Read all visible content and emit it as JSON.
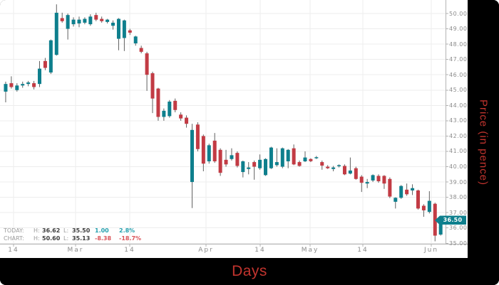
{
  "price_badge": {
    "value": "36.50",
    "price": 36.5
  },
  "legend": {
    "rows": [
      {
        "label": "TODAY:",
        "h_label": "H:",
        "high": "36.62",
        "l_label": "L:",
        "low": "35.50",
        "change": "1.00",
        "pct": "2.8%",
        "direction": "up"
      },
      {
        "label": "CHART:",
        "h_label": "H:",
        "high": "50.60",
        "l_label": "L:",
        "low": "35.13",
        "change": "-8.38",
        "pct": "-18.7%",
        "direction": "down"
      }
    ]
  },
  "colors": {
    "up": "#0e7f8d",
    "down": "#c23b44",
    "wick": "#606060",
    "grid": "#ededed",
    "axis": "#b3b3b3",
    "tick_text": "#8b8b8b",
    "axis_title": "#c2342e",
    "badge_bg": "#0e7f8d",
    "frame_bg": "#000000"
  },
  "chart_data": {
    "type": "candlestick",
    "xlabel": "Days",
    "ylabel": "Price (in pence)",
    "grid": true,
    "legend_position": "bottom-left",
    "ylim": [
      35,
      50.6
    ],
    "y_ticks": [
      {
        "label": "50.00",
        "price": 50
      },
      {
        "label": "49.00",
        "price": 49
      },
      {
        "label": "48.00",
        "price": 48
      },
      {
        "label": "47.00",
        "price": 47
      },
      {
        "label": "46.00",
        "price": 46
      },
      {
        "label": "45.00",
        "price": 45
      },
      {
        "label": "44.00",
        "price": 44
      },
      {
        "label": "43.00",
        "price": 43
      },
      {
        "label": "42.00",
        "price": 42
      },
      {
        "label": "41.00",
        "price": 41
      },
      {
        "label": "40.00",
        "price": 40
      },
      {
        "label": "39.00",
        "price": 39
      },
      {
        "label": "38.00",
        "price": 38
      },
      {
        "label": "37.00",
        "price": 37
      },
      {
        "label": "36.00",
        "price": 36
      },
      {
        "label": "35.00",
        "price": 35
      }
    ],
    "x_ticks": [
      {
        "label": "14",
        "x": 19
      },
      {
        "label": "Mar",
        "x": 106
      },
      {
        "label": "14",
        "x": 182
      },
      {
        "label": "Apr",
        "x": 289
      },
      {
        "label": "14",
        "x": 365
      },
      {
        "label": "May",
        "x": 435
      },
      {
        "label": "14",
        "x": 509
      },
      {
        "label": "Jun",
        "x": 605
      }
    ],
    "candles_format": [
      "open",
      "high",
      "low",
      "close"
    ],
    "candles": [
      [
        44.9,
        45.55,
        44.2,
        45.4
      ],
      [
        45.45,
        45.9,
        45.1,
        45.2
      ],
      [
        45.0,
        45.45,
        44.9,
        45.3
      ],
      [
        45.3,
        45.55,
        45.15,
        45.4
      ],
      [
        45.4,
        45.6,
        45.25,
        45.5
      ],
      [
        45.45,
        45.6,
        45.05,
        45.2
      ],
      [
        45.4,
        46.9,
        45.2,
        46.4
      ],
      [
        46.9,
        47.1,
        46.3,
        46.45
      ],
      [
        46.15,
        48.3,
        46.05,
        48.25
      ],
      [
        47.3,
        50.6,
        47.25,
        50.05
      ],
      [
        49.7,
        50.05,
        49.4,
        49.5
      ],
      [
        49.0,
        50.0,
        48.3,
        49.9
      ],
      [
        49.3,
        49.75,
        49.15,
        49.6
      ],
      [
        49.35,
        49.8,
        49.1,
        49.6
      ],
      [
        49.4,
        49.75,
        49.3,
        49.65
      ],
      [
        49.3,
        49.95,
        49.2,
        49.8
      ],
      [
        49.9,
        50.05,
        49.5,
        49.6
      ],
      [
        49.65,
        49.8,
        49.4,
        49.5
      ],
      [
        49.45,
        49.65,
        49.35,
        49.6
      ],
      [
        49.2,
        49.55,
        48.95,
        49.4
      ],
      [
        48.35,
        49.7,
        47.6,
        49.65
      ],
      [
        48.4,
        49.6,
        47.55,
        49.55
      ],
      [
        48.9,
        49.0,
        48.6,
        48.75
      ],
      [
        48.05,
        48.55,
        47.9,
        48.5
      ],
      [
        47.75,
        47.9,
        47.4,
        47.5
      ],
      [
        47.4,
        47.5,
        44.95,
        46.0
      ],
      [
        46.1,
        46.2,
        43.5,
        44.45
      ],
      [
        45.1,
        45.15,
        43.0,
        43.25
      ],
      [
        43.25,
        43.8,
        43.0,
        43.65
      ],
      [
        43.3,
        44.35,
        43.2,
        44.25
      ],
      [
        44.3,
        44.45,
        43.55,
        43.7
      ],
      [
        43.4,
        43.55,
        43.0,
        43.15
      ],
      [
        43.2,
        43.35,
        42.55,
        42.8
      ],
      [
        39.0,
        42.8,
        37.3,
        42.4
      ],
      [
        42.75,
        42.9,
        41.0,
        41.15
      ],
      [
        42.0,
        42.1,
        39.7,
        40.2
      ],
      [
        40.35,
        41.5,
        40.2,
        41.4
      ],
      [
        41.7,
        42.2,
        40.25,
        40.35
      ],
      [
        41.1,
        41.2,
        39.4,
        39.6
      ],
      [
        40.45,
        41.1,
        40.0,
        40.15
      ],
      [
        40.5,
        41.2,
        40.4,
        40.75
      ],
      [
        40.9,
        41.0,
        39.95,
        40.05
      ],
      [
        39.65,
        40.4,
        39.3,
        40.35
      ],
      [
        39.85,
        40.3,
        39.5,
        39.95
      ],
      [
        40.3,
        40.4,
        39.15,
        40.0
      ],
      [
        39.9,
        40.8,
        39.8,
        40.45
      ],
      [
        39.45,
        40.55,
        39.4,
        40.5
      ],
      [
        39.9,
        41.3,
        39.85,
        41.25
      ],
      [
        40.1,
        41.2,
        40.0,
        40.3
      ],
      [
        40.0,
        41.25,
        39.9,
        41.2
      ],
      [
        40.35,
        41.15,
        39.9,
        41.1
      ],
      [
        41.2,
        41.45,
        40.1,
        40.15
      ],
      [
        40.3,
        40.4,
        40.0,
        40.05
      ],
      [
        40.35,
        41.0,
        40.3,
        40.6
      ],
      [
        40.5,
        40.55,
        40.3,
        40.36
      ],
      [
        40.55,
        40.7,
        40.5,
        40.62
      ],
      [
        40.3,
        40.4,
        39.8,
        40.07
      ],
      [
        40.0,
        40.1,
        39.85,
        39.9
      ],
      [
        39.85,
        40.05,
        39.7,
        39.95
      ],
      [
        40.05,
        40.15,
        39.95,
        40.1
      ],
      [
        40.05,
        40.15,
        39.45,
        39.5
      ],
      [
        39.55,
        40.6,
        39.5,
        39.75
      ],
      [
        39.9,
        40.0,
        39.15,
        39.2
      ],
      [
        39.35,
        39.45,
        38.35,
        38.95
      ],
      [
        38.9,
        39.2,
        38.6,
        39.0
      ],
      [
        39.1,
        39.5,
        39.0,
        39.45
      ],
      [
        39.4,
        39.5,
        38.95,
        39.05
      ],
      [
        39.4,
        39.45,
        38.55,
        38.9
      ],
      [
        39.2,
        39.3,
        37.95,
        38.05
      ],
      [
        37.71,
        38.0,
        37.27,
        37.97
      ],
      [
        37.97,
        38.8,
        37.9,
        38.74
      ],
      [
        38.5,
        38.9,
        38.1,
        38.2
      ],
      [
        38.45,
        38.85,
        38.15,
        38.6
      ],
      [
        38.45,
        38.5,
        37.2,
        37.27
      ],
      [
        37.45,
        37.55,
        36.73,
        37.15
      ],
      [
        37.05,
        38.4,
        36.95,
        37.77
      ],
      [
        37.58,
        37.65,
        35.13,
        35.5
      ],
      [
        35.57,
        36.62,
        35.5,
        36.5
      ]
    ]
  }
}
